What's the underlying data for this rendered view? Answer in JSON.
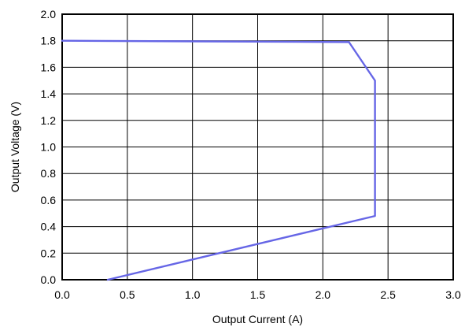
{
  "chart_data": {
    "type": "line",
    "title": "",
    "xlabel": "Output Current (A)",
    "ylabel": "Output Voltage (V)",
    "xlim": [
      0.0,
      3.0
    ],
    "ylim": [
      0.0,
      2.0
    ],
    "x_ticks": [
      "0.0",
      "0.5",
      "1.0",
      "1.5",
      "2.0",
      "2.5",
      "3.0"
    ],
    "y_ticks": [
      "0.0",
      "0.2",
      "0.4",
      "0.6",
      "0.8",
      "1.0",
      "1.2",
      "1.4",
      "1.6",
      "1.8",
      "2.0"
    ],
    "grid": true,
    "legend": "none",
    "series": [
      {
        "color": "#6666e6",
        "points": [
          {
            "x": 0.0,
            "y": 1.8
          },
          {
            "x": 2.2,
            "y": 1.79
          },
          {
            "x": 2.4,
            "y": 1.5
          },
          {
            "x": 2.4,
            "y": 0.48
          },
          {
            "x": 0.35,
            "y": 0.0
          }
        ]
      }
    ]
  }
}
